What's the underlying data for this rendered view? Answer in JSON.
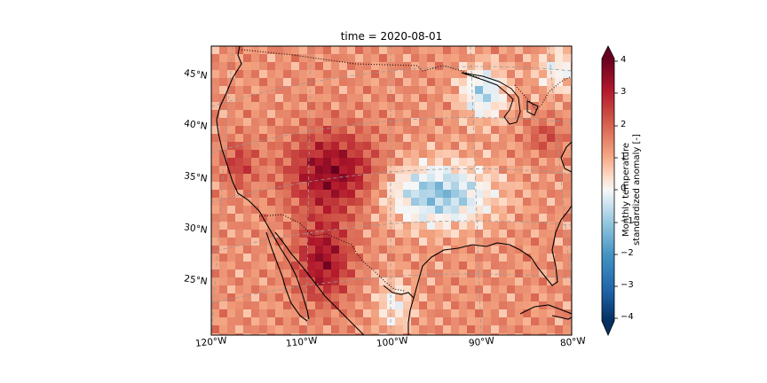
{
  "title": "time = 2020-08-01",
  "map": {
    "lat_labels": [
      "45°N",
      "40°N",
      "35°N",
      "30°N",
      "25°N"
    ],
    "lon_labels": [
      "120°W",
      "110°W",
      "100°W",
      "90°W",
      "80°W"
    ],
    "gridlines": "on",
    "features": [
      "coastline",
      "country-borders",
      "great-lakes"
    ]
  },
  "colorbar": {
    "label_line1": "Monthly temperature",
    "label_line2": "standardized anomaly [-]",
    "ticks": [
      "4",
      "3",
      "2",
      "1",
      "0",
      "−1",
      "−2",
      "−3",
      "−4"
    ],
    "range": [
      -4,
      4
    ],
    "colormap": "RdBu_r",
    "extend": "both"
  },
  "colors": {
    "high": "#67001f",
    "mid": "#f7f7f7",
    "low": "#053061"
  }
}
